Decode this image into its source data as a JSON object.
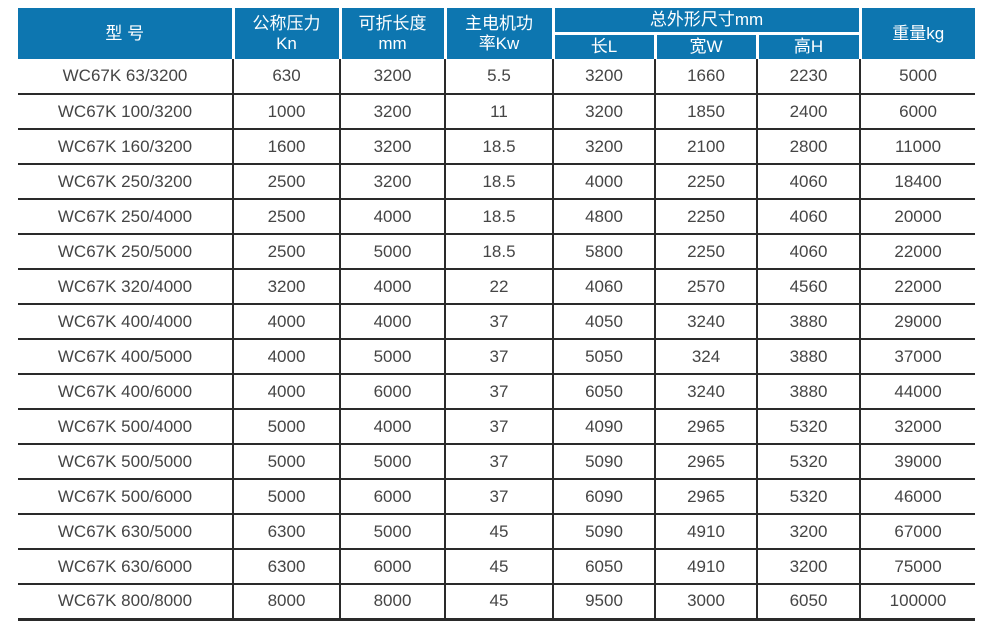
{
  "colors": {
    "header_bg": "#0d76b0",
    "header_fg": "#ffffff",
    "grid": "#2a2a2a",
    "body_fg": "#454545"
  },
  "table": {
    "headers": {
      "model": "型 号",
      "pressure_line1": "公称压力",
      "pressure_line2": "Kn",
      "fold_length_line1": "可折长度",
      "fold_length_line2": "mm",
      "motor_line1": "主电机功",
      "motor_line2": "率Kw",
      "dims_group": "总外形尺寸mm",
      "dim_length": "长L",
      "dim_width": "宽W",
      "dim_height": "高H",
      "weight": "重量kg"
    },
    "rows": [
      {
        "cells": [
          "WC67K 63/3200",
          "630",
          "3200",
          "5.5",
          "3200",
          "1660",
          "2230",
          "5000"
        ]
      },
      {
        "cells": [
          "WC67K 100/3200",
          "1000",
          "3200",
          "11",
          "3200",
          "1850",
          "2400",
          "6000"
        ]
      },
      {
        "cells": [
          "WC67K 160/3200",
          "1600",
          "3200",
          "18.5",
          "3200",
          "2100",
          "2800",
          "11000"
        ]
      },
      {
        "cells": [
          "WC67K 250/3200",
          "2500",
          "3200",
          "18.5",
          "4000",
          "2250",
          "4060",
          "18400"
        ]
      },
      {
        "cells": [
          "WC67K 250/4000",
          "2500",
          "4000",
          "18.5",
          "4800",
          "2250",
          "4060",
          "20000"
        ]
      },
      {
        "cells": [
          "WC67K 250/5000",
          "2500",
          "5000",
          "18.5",
          "5800",
          "2250",
          "4060",
          "22000"
        ]
      },
      {
        "cells": [
          "WC67K 320/4000",
          "3200",
          "4000",
          "22",
          "4060",
          "2570",
          "4560",
          "22000"
        ]
      },
      {
        "cells": [
          "WC67K 400/4000",
          "4000",
          "4000",
          "37",
          "4050",
          "3240",
          "3880",
          "29000"
        ]
      },
      {
        "cells": [
          "WC67K 400/5000",
          "4000",
          "5000",
          "37",
          "5050",
          "324",
          "3880",
          "37000"
        ]
      },
      {
        "cells": [
          "WC67K 400/6000",
          "4000",
          "6000",
          "37",
          "6050",
          "3240",
          "3880",
          "44000"
        ]
      },
      {
        "cells": [
          "WC67K 500/4000",
          "5000",
          "4000",
          "37",
          "4090",
          "2965",
          "5320",
          "32000"
        ]
      },
      {
        "cells": [
          "WC67K 500/5000",
          "5000",
          "5000",
          "37",
          "5090",
          "2965",
          "5320",
          "39000"
        ]
      },
      {
        "cells": [
          "WC67K 500/6000",
          "5000",
          "6000",
          "37",
          "6090",
          "2965",
          "5320",
          "46000"
        ]
      },
      {
        "cells": [
          "WC67K 630/5000",
          "6300",
          "5000",
          "45",
          "5090",
          "4910",
          "3200",
          "67000"
        ]
      },
      {
        "cells": [
          "WC67K 630/6000",
          "6300",
          "6000",
          "45",
          "6050",
          "4910",
          "3200",
          "75000"
        ]
      },
      {
        "cells": [
          "WC67K 800/8000",
          "8000",
          "8000",
          "45",
          "9500",
          "3000",
          "6050",
          "100000"
        ]
      }
    ]
  }
}
